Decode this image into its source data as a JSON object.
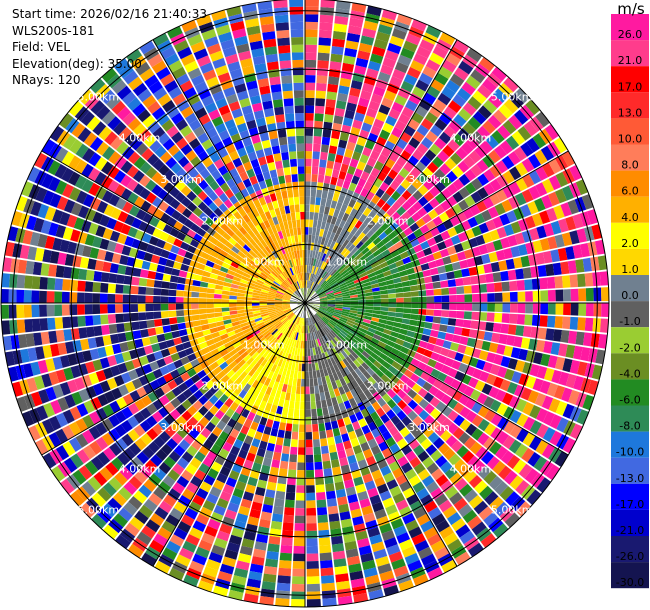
{
  "info": {
    "start_time": "Start time: 2026/02/16 21:40:33",
    "site": "WLS200s-181",
    "field": "Field: VEL",
    "elevation": "Elevation(deg): 35.00",
    "nrays": "NRays: 120"
  },
  "chart_data": {
    "type": "ppi_polar_heatmap",
    "field": "VEL",
    "units": "m/s",
    "nrays": 120,
    "elevation_deg": 35.0,
    "range_rings_km": [
      1.0,
      2.0,
      3.0,
      4.0,
      5.0
    ],
    "range_ring_labels": [
      "1.00km",
      "2.00km",
      "3.00km",
      "4.00km",
      "5.00km"
    ],
    "max_range_km": 5.2,
    "colorbar": {
      "unit_label": "m/s",
      "tick_labels": [
        "26.0",
        "21.0",
        "17.0",
        "13.0",
        "10.0",
        "8.0",
        "6.0",
        "4.0",
        "2.0",
        "1.0",
        "0.0",
        "-1.0",
        "-2.0",
        "-4.0",
        "-6.0",
        "-8.0",
        "-10.0",
        "-13.0",
        "-17.0",
        "-21.0",
        "-26.0",
        "-30.0"
      ],
      "colors": [
        "#ff1aa0",
        "#ff3c8c",
        "#ff0000",
        "#ff2a2a",
        "#ff5a36",
        "#ff7d5a",
        "#ff8c00",
        "#ffb000",
        "#ffff00",
        "#ffd800",
        "#708090",
        "#606060",
        "#9acd32",
        "#6b8e23",
        "#228b22",
        "#2e8b57",
        "#1e78dc",
        "#4169e1",
        "#0000ff",
        "#0000cd",
        "#191970",
        "#141450"
      ]
    },
    "sectors": [
      {
        "azimuth_deg": 0,
        "near_field_ms": 0.0,
        "far_field_ms": 21.0
      },
      {
        "azimuth_deg": 45,
        "near_field_ms": -6.0,
        "far_field_ms": 26.0
      },
      {
        "azimuth_deg": 90,
        "near_field_ms": -6.0,
        "far_field_ms": 26.0
      },
      {
        "azimuth_deg": 135,
        "near_field_ms": -1.0,
        "far_field_ms": "noise"
      },
      {
        "azimuth_deg": 180,
        "near_field_ms": 2.0,
        "far_field_ms": "noise"
      },
      {
        "azimuth_deg": 225,
        "near_field_ms": 4.0,
        "far_field_ms": -26.0
      },
      {
        "azimuth_deg": 270,
        "near_field_ms": 4.0,
        "far_field_ms": -26.0
      },
      {
        "azimuth_deg": 315,
        "near_field_ms": 4.0,
        "far_field_ms": -13.0
      }
    ]
  }
}
